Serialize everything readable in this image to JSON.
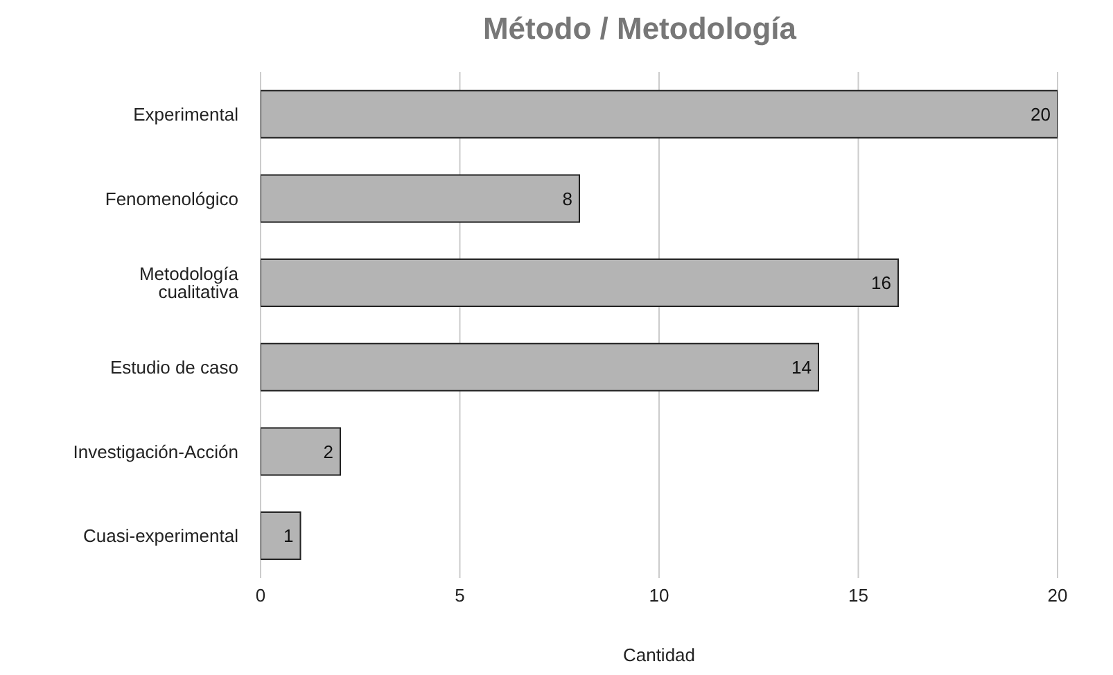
{
  "chart_data": {
    "type": "bar",
    "orientation": "horizontal",
    "title": "Método / Metodología",
    "xlabel": "Cantidad",
    "categories": [
      "Experimental",
      "Fenomenológico",
      "Metodología cualitativa",
      "Estudio de caso",
      "Investigación-Acción",
      "Cuasi-experimental"
    ],
    "values": [
      20,
      8,
      16,
      14,
      2,
      1
    ],
    "color": "#b4b4b4",
    "xlim": [
      0,
      20
    ],
    "xticks": [
      0,
      5,
      10,
      15,
      20
    ],
    "grid": "x",
    "data_labels": true
  }
}
